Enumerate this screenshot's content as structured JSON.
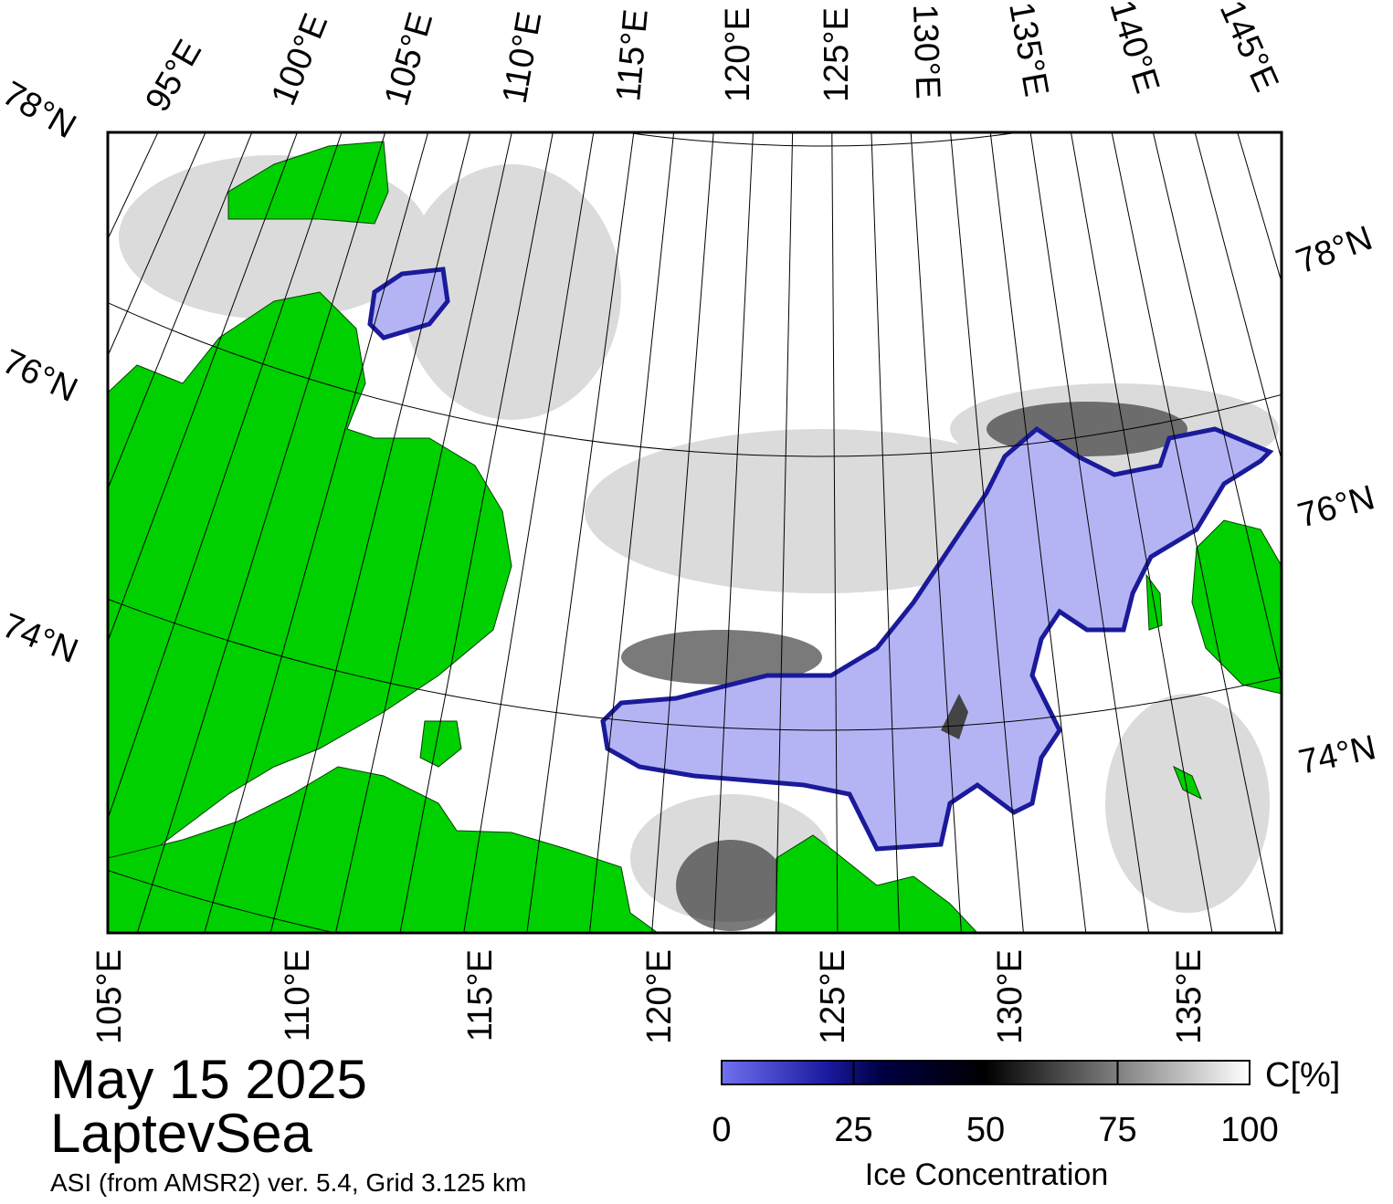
{
  "map": {
    "top_labels": [
      "95°E",
      "100°E",
      "105°E",
      "110°E",
      "115°E",
      "120°E",
      "125°E",
      "130°E",
      "135°E",
      "140°E",
      "145°E"
    ],
    "left_labels": [
      "78°N",
      "76°N",
      "74°N"
    ],
    "right_labels": [
      "78°N",
      "76°N",
      "74°N"
    ],
    "bottom_labels": [
      "105°E",
      "110°E",
      "115°E",
      "120°E",
      "125°E",
      "130°E",
      "135°E"
    ]
  },
  "date": "May 15 2025",
  "region": "LaptevSea",
  "source": "ASI (from AMSR2) ver. 5.4,  Grid 3.125 km",
  "colorbar": {
    "title": "Ice Concentration",
    "unit": "C[%]",
    "range": [
      0,
      100
    ],
    "ticks": [
      0,
      25,
      50,
      75,
      100
    ]
  }
}
